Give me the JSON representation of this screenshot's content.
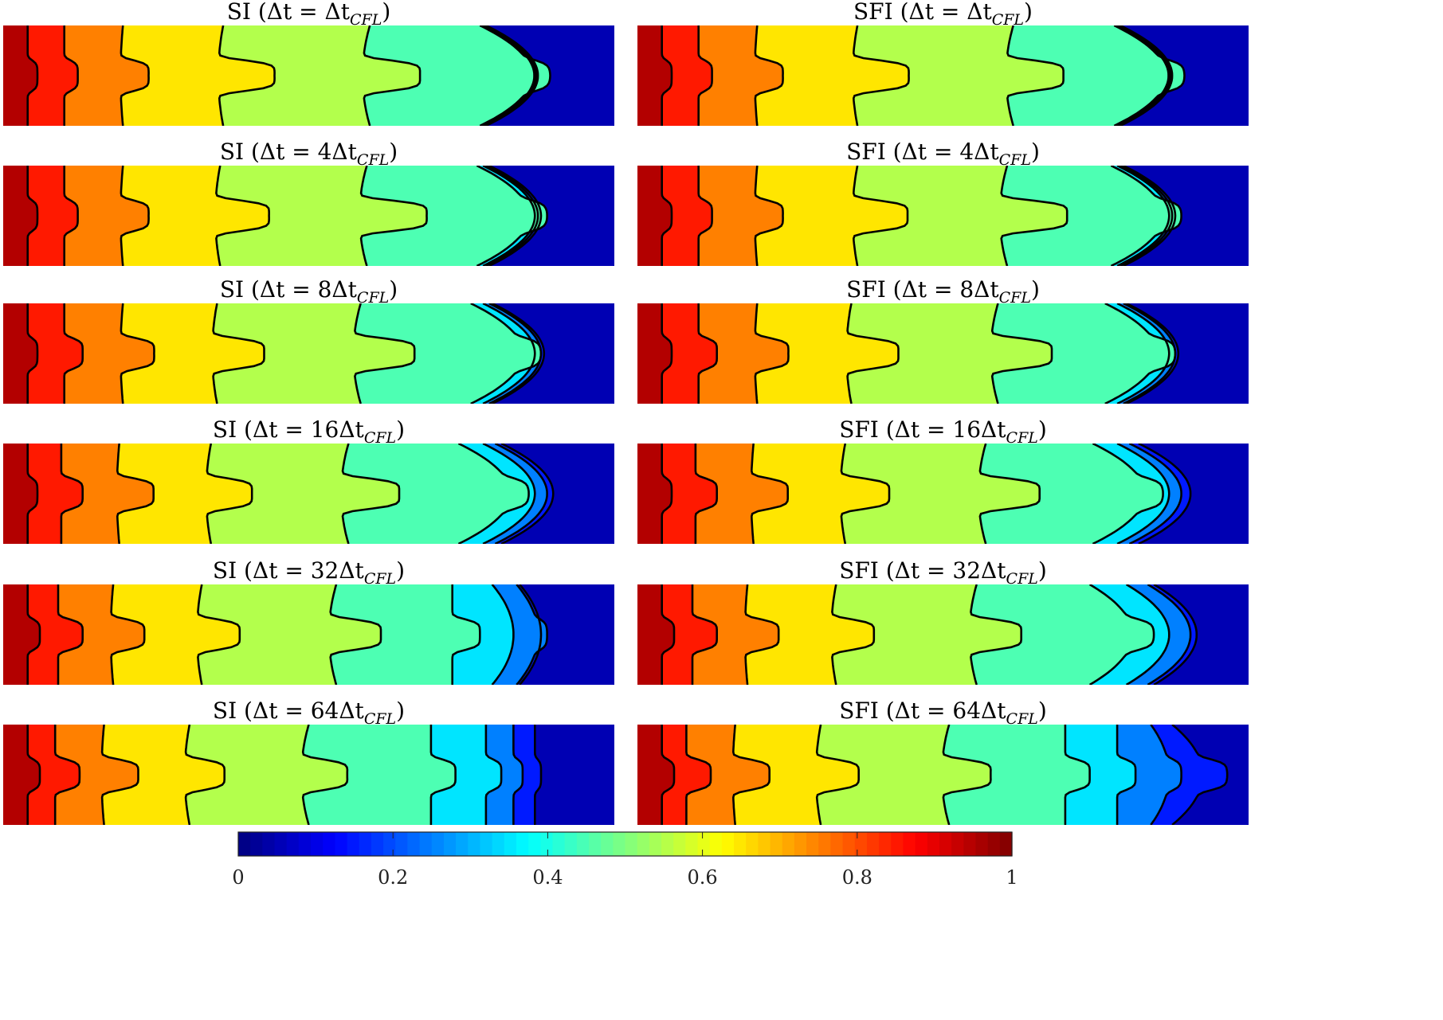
{
  "chart_data": {
    "type": "heatmap",
    "description_of_values": "filled contour maps of a scalar in [0,1], 12 panels (6 rows x 2 columns)",
    "colorbar": {
      "colormap": "jet",
      "range": [
        0,
        1
      ],
      "ticks": [
        0,
        0.2,
        0.4,
        0.6,
        0.8,
        1
      ],
      "tick_labels": [
        "0",
        "0.2",
        "0.4",
        "0.6",
        "0.8",
        "1"
      ]
    },
    "contour_levels": [
      0.1,
      0.2,
      0.3,
      0.4,
      0.5,
      0.6,
      0.7,
      0.8,
      0.9
    ],
    "columns": [
      "SI",
      "SFI"
    ],
    "panels": [
      {
        "method": "SI",
        "factor": "",
        "title_parts": {
          "prefix": "SI (Δt = ",
          "mult": "",
          "dt": "Δt",
          "sub": "CFL",
          "suffix": ")"
        },
        "front_x": [
          0.04,
          0.1,
          0.196,
          0.36,
          0.6,
          0.78,
          0.784,
          0.787,
          0.79
        ],
        "finger": [
          0.016,
          0.022,
          0.046,
          0.092,
          0.094,
          0.03,
          0.0,
          0.0,
          0.0
        ],
        "arc": [
          0.0,
          0.0,
          -0.004,
          -0.008,
          -0.012,
          0.085,
          0.085,
          0.085,
          0.085
        ]
      },
      {
        "method": "SFI",
        "factor": "",
        "title_parts": {
          "prefix": "SFI (Δt = ",
          "mult": "",
          "dt": "Δt",
          "sub": "CFL",
          "suffix": ")"
        },
        "front_x": [
          0.04,
          0.1,
          0.196,
          0.36,
          0.615,
          0.78,
          0.784,
          0.787,
          0.79
        ],
        "finger": [
          0.016,
          0.022,
          0.046,
          0.092,
          0.094,
          0.03,
          0.0,
          0.0,
          0.0
        ],
        "arc": [
          0.0,
          0.0,
          -0.004,
          -0.008,
          -0.012,
          0.085,
          0.085,
          0.085,
          0.085
        ]
      },
      {
        "method": "SI",
        "factor": "4",
        "title_parts": {
          "prefix": "SI (Δt = ",
          "mult": "4",
          "dt": "Δt",
          "sub": "CFL",
          "suffix": ")"
        },
        "front_x": [
          0.04,
          0.1,
          0.196,
          0.355,
          0.595,
          0.775,
          0.785,
          0.79,
          0.795
        ],
        "finger": [
          0.016,
          0.022,
          0.046,
          0.088,
          0.11,
          0.03,
          0.0,
          0.0,
          0.0
        ],
        "arc": [
          0.0,
          0.0,
          -0.004,
          -0.008,
          -0.012,
          0.085,
          0.085,
          0.085,
          0.085
        ]
      },
      {
        "method": "SFI",
        "factor": "4",
        "title_parts": {
          "prefix": "SFI (Δt = ",
          "mult": "4",
          "dt": "Δt",
          "sub": "CFL",
          "suffix": ")"
        },
        "front_x": [
          0.04,
          0.1,
          0.196,
          0.36,
          0.605,
          0.775,
          0.785,
          0.79,
          0.795
        ],
        "finger": [
          0.016,
          0.022,
          0.046,
          0.09,
          0.11,
          0.03,
          0.0,
          0.0,
          0.0
        ],
        "arc": [
          0.0,
          0.0,
          -0.004,
          -0.008,
          -0.012,
          0.085,
          0.085,
          0.085,
          0.085
        ]
      },
      {
        "method": "SI",
        "factor": "8",
        "title_parts": {
          "prefix": "SI (Δt = ",
          "mult": "8",
          "dt": "Δt",
          "sub": "CFL",
          "suffix": ")"
        },
        "front_x": [
          0.04,
          0.1,
          0.196,
          0.35,
          0.585,
          0.765,
          0.785,
          0.795,
          0.8
        ],
        "finger": [
          0.016,
          0.03,
          0.055,
          0.085,
          0.1,
          0.03,
          0.0,
          0.0,
          0.0
        ],
        "arc": [
          0.0,
          0.0,
          -0.004,
          -0.008,
          -0.012,
          0.085,
          0.085,
          0.085,
          0.085
        ]
      },
      {
        "method": "SFI",
        "factor": "8",
        "title_parts": {
          "prefix": "SFI (Δt = ",
          "mult": "8",
          "dt": "Δt",
          "sub": "CFL",
          "suffix": ")"
        },
        "front_x": [
          0.04,
          0.1,
          0.196,
          0.35,
          0.59,
          0.765,
          0.785,
          0.795,
          0.8
        ],
        "finger": [
          0.016,
          0.03,
          0.055,
          0.085,
          0.1,
          0.03,
          0.0,
          0.0,
          0.0
        ],
        "arc": [
          0.0,
          0.0,
          -0.004,
          -0.008,
          -0.012,
          0.085,
          0.085,
          0.085,
          0.085
        ]
      },
      {
        "method": "SI",
        "factor": "16",
        "title_parts": {
          "prefix": "SI (Δt = ",
          "mult": "16",
          "dt": "Δt",
          "sub": "CFL",
          "suffix": ")"
        },
        "front_x": [
          0.04,
          0.095,
          0.19,
          0.34,
          0.565,
          0.745,
          0.785,
          0.805,
          0.815
        ],
        "finger": [
          0.016,
          0.035,
          0.06,
          0.075,
          0.095,
          0.03,
          0.0,
          0.0,
          0.0
        ],
        "arc": [
          0.0,
          0.0,
          -0.004,
          -0.008,
          -0.012,
          0.085,
          0.085,
          0.085,
          0.085
        ]
      },
      {
        "method": "SFI",
        "factor": "16",
        "title_parts": {
          "prefix": "SFI (Δt = ",
          "mult": "16",
          "dt": "Δt",
          "sub": "CFL",
          "suffix": ")"
        },
        "front_x": [
          0.04,
          0.095,
          0.19,
          0.34,
          0.57,
          0.745,
          0.785,
          0.805,
          0.82
        ],
        "finger": [
          0.016,
          0.035,
          0.06,
          0.08,
          0.1,
          0.03,
          0.0,
          0.0,
          0.0
        ],
        "arc": [
          0.0,
          0.0,
          -0.004,
          -0.008,
          -0.012,
          0.085,
          0.085,
          0.085,
          0.085
        ]
      },
      {
        "method": "SI",
        "factor": "32",
        "title_parts": {
          "prefix": "SI (Δt = ",
          "mult": "32",
          "dt": "Δt",
          "sub": "CFL",
          "suffix": ")"
        },
        "front_x": [
          0.04,
          0.09,
          0.18,
          0.325,
          0.545,
          0.735,
          0.8,
          0.84,
          0.845
        ],
        "finger": [
          0.02,
          0.04,
          0.055,
          0.07,
          0.085,
          0.045,
          0.0,
          0.015,
          0.0
        ],
        "arc": [
          0.0,
          0.0,
          -0.004,
          -0.008,
          -0.012,
          0.0,
          0.035,
          0.035,
          0.035
        ]
      },
      {
        "method": "SFI",
        "factor": "32",
        "title_parts": {
          "prefix": "SFI (Δt = ",
          "mult": "32",
          "dt": "Δt",
          "sub": "CFL",
          "suffix": ")"
        },
        "front_x": [
          0.04,
          0.09,
          0.18,
          0.325,
          0.555,
          0.74,
          0.8,
          0.835,
          0.845
        ],
        "finger": [
          0.02,
          0.04,
          0.055,
          0.07,
          0.085,
          0.035,
          0.0,
          0.0,
          0.0
        ],
        "arc": [
          0.0,
          0.0,
          -0.004,
          -0.008,
          -0.012,
          0.07,
          0.07,
          0.07,
          0.07
        ]
      },
      {
        "method": "SI",
        "factor": "64",
        "title_parts": {
          "prefix": "SI (Δt = ",
          "mult": "64",
          "dt": "Δt",
          "sub": "CFL",
          "suffix": ")"
        },
        "front_x": [
          0.04,
          0.085,
          0.165,
          0.305,
          0.5,
          0.7,
          0.79,
          0.835,
          0.87
        ],
        "finger": [
          0.02,
          0.04,
          0.06,
          0.065,
          0.075,
          0.04,
          0.025,
          0.015,
          0.01
        ],
        "arc": [
          0.0,
          0.0,
          -0.004,
          -0.008,
          -0.012,
          0.0,
          0.0,
          0.0,
          0.0
        ]
      },
      {
        "method": "SFI",
        "factor": "64",
        "title_parts": {
          "prefix": "SFI (Δt = ",
          "mult": "64",
          "dt": "Δt",
          "sub": "CFL",
          "suffix": ")"
        },
        "front_x": [
          0.04,
          0.08,
          0.16,
          0.3,
          0.51,
          0.7,
          0.785,
          0.84,
          0.875
        ],
        "finger": [
          0.02,
          0.04,
          0.06,
          0.07,
          0.08,
          0.04,
          0.03,
          0.02,
          0.04
        ],
        "arc": [
          0.0,
          0.0,
          -0.004,
          -0.008,
          -0.012,
          0.0,
          0.0,
          0.03,
          0.05
        ]
      }
    ]
  }
}
